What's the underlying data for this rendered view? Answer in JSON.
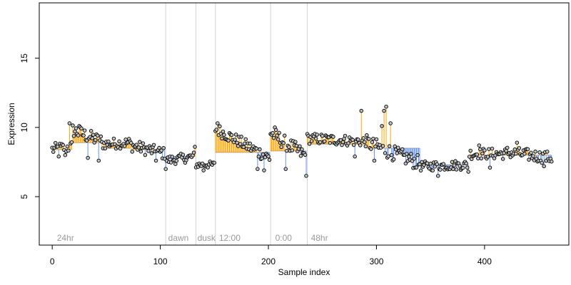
{
  "chart_data": {
    "type": "scatter",
    "xlabel": "Sample index",
    "ylabel": "Expression",
    "xlim": [
      -12,
      478
    ],
    "ylim": [
      1.5,
      19
    ],
    "xticks": [
      0,
      100,
      200,
      300,
      400
    ],
    "yticks": [
      5,
      10,
      15
    ],
    "colors": {
      "above": "#ffa500",
      "below": "#6495ed",
      "point_fill": "#c0c0c0",
      "point_stroke": "#000000",
      "vline": "#d3d3d3",
      "annotation": "#9a9a9a"
    },
    "vlines": [
      105,
      133,
      151,
      202,
      236
    ],
    "annotations": [
      {
        "x": 3,
        "text": "24hr"
      },
      {
        "x": 106,
        "text": "dawn"
      },
      {
        "x": 133,
        "text": "dusk"
      },
      {
        "x": 153,
        "text": "12:00"
      },
      {
        "x": 205,
        "text": "0:00"
      },
      {
        "x": 238,
        "text": "48hr"
      }
    ],
    "segments": [
      {
        "x0": 0,
        "x1": 18,
        "base": 8.4,
        "start": 8.4,
        "end": 8.6,
        "noise": 0.45,
        "extra": [
          [
            6,
            7.9
          ],
          [
            16,
            10.3
          ],
          [
            12,
            8.0
          ]
        ]
      },
      {
        "x0": 19,
        "x1": 45,
        "base": 8.9,
        "start": 9.8,
        "end": 9.0,
        "noise": 0.5,
        "extra": [
          [
            33,
            7.8
          ],
          [
            43,
            7.6
          ],
          [
            25,
            10.1
          ]
        ]
      },
      {
        "x0": 46,
        "x1": 72,
        "base": 8.5,
        "start": 8.8,
        "end": 8.9,
        "noise": 0.4,
        "extra": []
      },
      {
        "x0": 73,
        "x1": 104,
        "base": 8.4,
        "start": 8.7,
        "end": 8.1,
        "noise": 0.45,
        "extra": [
          [
            96,
            7.6
          ]
        ]
      },
      {
        "x0": 105,
        "x1": 132,
        "base": 7.9,
        "start": 7.6,
        "end": 7.9,
        "noise": 0.35,
        "extra": [
          [
            105,
            7.0
          ],
          [
            132,
            8.6
          ]
        ]
      },
      {
        "x0": 133,
        "x1": 150,
        "base": 7.4,
        "start": 7.3,
        "end": 7.3,
        "noise": 0.25,
        "extra": [
          [
            140,
            6.9
          ]
        ]
      },
      {
        "x0": 151,
        "x1": 201,
        "base": 8.2,
        "start": 9.9,
        "end": 7.8,
        "noise": 0.45,
        "extra": [
          [
            153,
            10.3
          ],
          [
            190,
            7.0
          ],
          [
            196,
            6.9
          ]
        ]
      },
      {
        "x0": 202,
        "x1": 235,
        "base": 8.3,
        "start": 9.6,
        "end": 7.9,
        "noise": 0.55,
        "extra": [
          [
            206,
            10.0
          ],
          [
            216,
            7.0
          ],
          [
            235,
            6.5
          ]
        ]
      },
      {
        "x0": 236,
        "x1": 290,
        "base": 8.8,
        "start": 9.2,
        "end": 9.0,
        "noise": 0.4,
        "extra": [
          [
            286,
            11.2
          ],
          [
            280,
            7.9
          ]
        ]
      },
      {
        "x0": 291,
        "x1": 340,
        "base": 8.5,
        "start": 8.9,
        "end": 7.4,
        "noise": 0.55,
        "extra": [
          [
            305,
            10.1
          ],
          [
            307,
            11.2
          ],
          [
            309,
            11.5
          ],
          [
            313,
            10.3
          ],
          [
            298,
            7.6
          ]
        ]
      },
      {
        "x0": 341,
        "x1": 385,
        "base": 7.3,
        "start": 7.2,
        "end": 7.3,
        "noise": 0.35,
        "extra": [
          [
            357,
            6.5
          ],
          [
            340,
            6.6
          ],
          [
            385,
            6.8
          ]
        ]
      },
      {
        "x0": 386,
        "x1": 420,
        "base": 8.0,
        "start": 8.1,
        "end": 8.1,
        "noise": 0.4,
        "extra": [
          [
            395,
            8.7
          ],
          [
            405,
            7.1
          ]
        ]
      },
      {
        "x0": 421,
        "x1": 462,
        "base": 8.0,
        "start": 8.2,
        "end": 7.8,
        "noise": 0.45,
        "extra": [
          [
            430,
            8.9
          ],
          [
            455,
            7.2
          ]
        ]
      }
    ]
  }
}
